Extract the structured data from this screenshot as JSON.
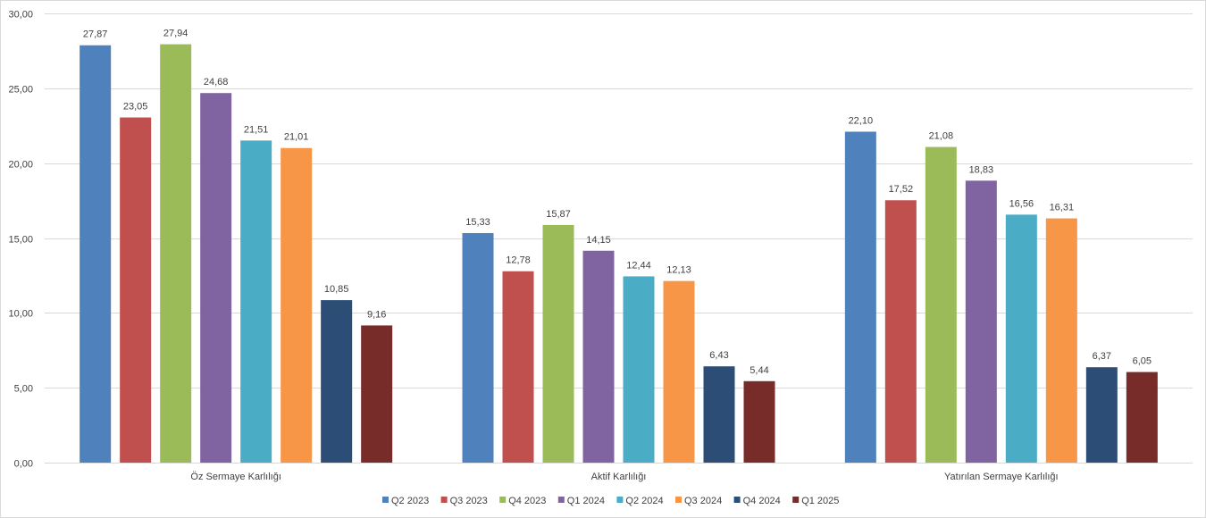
{
  "chart_data": {
    "type": "bar",
    "categories": [
      "Öz Sermaye Karlılığı",
      "Aktif Karlılığı",
      "Yatırılan Sermaye Karlılığı"
    ],
    "series": [
      {
        "name": "Q2 2023",
        "color": "#4f81bd",
        "values": [
          27.87,
          15.33,
          22.1
        ],
        "labels": [
          "27,87",
          "15,33",
          "22,10"
        ]
      },
      {
        "name": "Q3 2023",
        "color": "#c0504d",
        "values": [
          23.05,
          12.78,
          17.52
        ],
        "labels": [
          "23,05",
          "12,78",
          "17,52"
        ]
      },
      {
        "name": "Q4 2023",
        "color": "#9bbb59",
        "values": [
          27.94,
          15.87,
          21.08
        ],
        "labels": [
          "27,94",
          "15,87",
          "21,08"
        ]
      },
      {
        "name": "Q1 2024",
        "color": "#8064a2",
        "values": [
          24.68,
          14.15,
          18.83
        ],
        "labels": [
          "24,68",
          "14,15",
          "18,83"
        ]
      },
      {
        "name": "Q2 2024",
        "color": "#4bacc6",
        "values": [
          21.51,
          12.44,
          16.56
        ],
        "labels": [
          "21,51",
          "12,44",
          "16,56"
        ]
      },
      {
        "name": "Q3 2024",
        "color": "#f79646",
        "values": [
          21.01,
          12.13,
          16.31
        ],
        "labels": [
          "21,01",
          "12,13",
          "16,31"
        ]
      },
      {
        "name": "Q4 2024",
        "color": "#2c4d75",
        "values": [
          10.85,
          6.43,
          6.37
        ],
        "labels": [
          "10,85",
          "6,43",
          "6,37"
        ]
      },
      {
        "name": "Q1 2025",
        "color": "#772c2a",
        "values": [
          9.16,
          5.44,
          6.05
        ],
        "labels": [
          "9,16",
          "5,44",
          "6,05"
        ]
      }
    ],
    "y_ticks": [
      "0,00",
      "5,00",
      "10,00",
      "15,00",
      "20,00",
      "25,00",
      "30,00"
    ],
    "ylim": [
      0,
      30
    ],
    "grid": true,
    "legend_position": "bottom",
    "title": "",
    "xlabel": "",
    "ylabel": ""
  }
}
